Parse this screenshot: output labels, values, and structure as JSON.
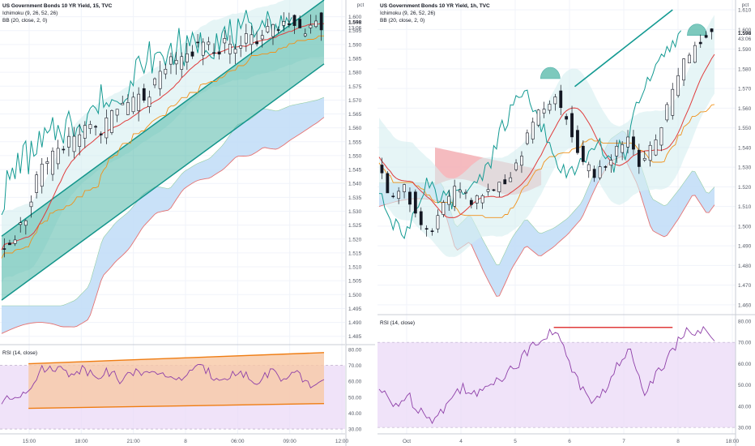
{
  "colors": {
    "up": "#ffffff",
    "down": "#131722",
    "ichimoku_cloud_bull": "#bfdcf7",
    "ichimoku_cloud_bear": "#f4b4b8",
    "channel_fill": "#52b8a8",
    "channel_line": "#13958b",
    "bb_fill": "#d6eef0",
    "rsi_line": "#8e3fa8",
    "rsi_band": "#e9d7f7",
    "rsi_channel_fill": "#f7c8a5",
    "rsi_channel_line": "#ef7d13",
    "orange": "#f0921b",
    "red": "#e03c3c",
    "teal": "#139a92",
    "highlight_label": "#131722"
  },
  "chart_data": [
    {
      "type": "line",
      "panel": "left",
      "title": "US Government Bonds 10 YR Yield, 15, TVC",
      "indicators": [
        "Ichimoku (9, 26, 52, 26)",
        "BB (20, close, 2, 0)"
      ],
      "y_axis": {
        "unit": "pct",
        "ticks": [
          "1.600",
          "1.595",
          "1.590",
          "1.585",
          "1.580",
          "1.575",
          "1.570",
          "1.565",
          "1.560",
          "1.555",
          "1.550",
          "1.545",
          "1.540",
          "1.535",
          "1.530",
          "1.525",
          "1.520",
          "1.515",
          "1.510",
          "1.505",
          "1.500",
          "1.495",
          "1.490",
          "1.485"
        ],
        "ylim": [
          1.482,
          1.606
        ],
        "last_price": "1.598",
        "countdown": "13:06"
      },
      "x_axis": {
        "ticks": [
          "15:00",
          "18:00",
          "21:00",
          "8",
          "06:00",
          "09:00",
          "12:00"
        ]
      },
      "price": {
        "x": [
          0,
          4,
          8,
          12,
          16,
          20,
          24,
          28,
          32,
          36,
          40,
          44,
          48,
          52,
          56,
          60,
          64,
          68,
          72,
          76,
          80,
          84,
          88,
          92,
          96
        ],
        "close": [
          1.518,
          1.52,
          1.525,
          1.542,
          1.548,
          1.552,
          1.558,
          1.561,
          1.56,
          1.566,
          1.569,
          1.571,
          1.576,
          1.583,
          1.585,
          1.589,
          1.588,
          1.59,
          1.591,
          1.592,
          1.594,
          1.596,
          1.598,
          1.595,
          1.598
        ]
      },
      "rsi": {
        "label": "RSI (14, close)",
        "ticks": [
          "80.00",
          "70.00",
          "60.00",
          "50.00",
          "40.00",
          "30.00"
        ],
        "ylim": [
          27,
          83
        ],
        "values": [
          47,
          50,
          56,
          67,
          69,
          65,
          68,
          64,
          66,
          60,
          68,
          63,
          66,
          59,
          67,
          68,
          62,
          64,
          65,
          58,
          67,
          61,
          64,
          57,
          60
        ]
      }
    },
    {
      "type": "line",
      "panel": "right",
      "title": "US Government Bonds 10 YR Yield, 1h, TVC",
      "indicators": [
        "Ichimoku (9, 26, 52, 26)",
        "BB (20, close, 2, 0)"
      ],
      "y_axis": {
        "unit": "pct",
        "ticks": [
          "1.610",
          "1.600",
          "1.590",
          "1.580",
          "1.570",
          "1.560",
          "1.550",
          "1.540",
          "1.530",
          "1.520",
          "1.510",
          "1.500",
          "1.490",
          "1.480",
          "1.470",
          "1.460"
        ],
        "ylim": [
          1.455,
          1.615
        ],
        "last_price": "1.598",
        "countdown": "43:06"
      },
      "x_axis": {
        "ticks": [
          "Oct",
          "4",
          "5",
          "6",
          "7",
          "8",
          "18:00"
        ]
      },
      "price": {
        "x": [
          0,
          4,
          8,
          12,
          16,
          20,
          24,
          28,
          32,
          36,
          40,
          44,
          48,
          52,
          56,
          60,
          64,
          68,
          72,
          76,
          80,
          84,
          88,
          92,
          96
        ],
        "close": [
          1.538,
          1.515,
          1.522,
          1.508,
          1.495,
          1.51,
          1.52,
          1.512,
          1.515,
          1.52,
          1.528,
          1.545,
          1.56,
          1.565,
          1.552,
          1.53,
          1.526,
          1.535,
          1.545,
          1.532,
          1.54,
          1.56,
          1.58,
          1.592,
          1.598
        ]
      },
      "rsi": {
        "label": "RSI (14, close)",
        "ticks": [
          "80.00",
          "70.00",
          "60.00",
          "50.00",
          "40.00",
          "30.00"
        ],
        "ylim": [
          27,
          83
        ],
        "values": [
          48,
          40,
          45,
          38,
          34,
          42,
          50,
          44,
          52,
          55,
          60,
          70,
          74,
          72,
          55,
          42,
          46,
          58,
          66,
          48,
          56,
          68,
          74,
          76,
          70
        ]
      }
    }
  ]
}
